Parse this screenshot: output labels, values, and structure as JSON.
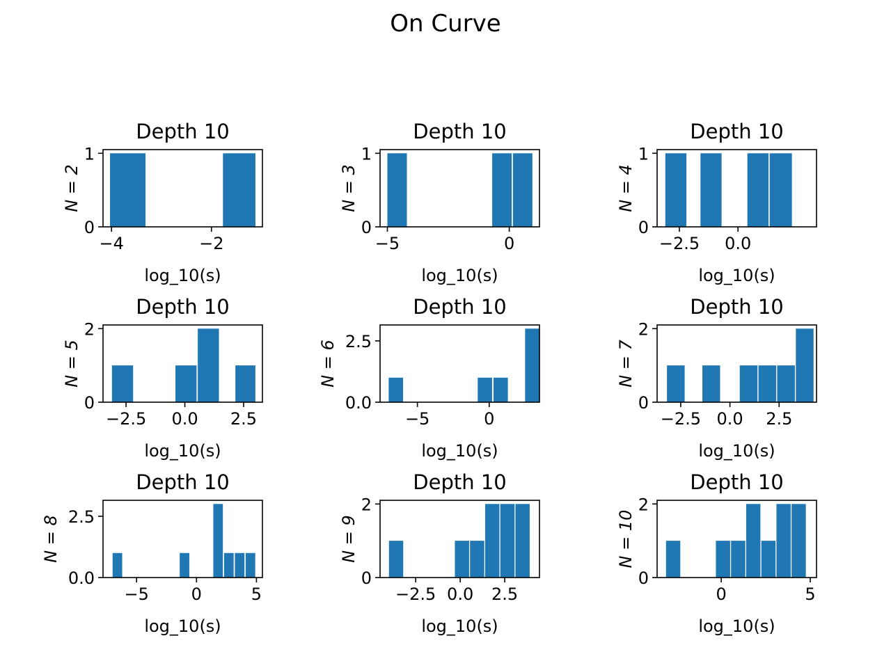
{
  "figure": {
    "suptitle": "On Curve"
  },
  "chart_data": [
    {
      "type": "bar",
      "title": "Depth 10",
      "ylabel": "N = 2",
      "xlabel": "log_10(s)",
      "xlim": [
        -4.17,
        -0.98
      ],
      "ylim": [
        0,
        1.05
      ],
      "xticks": [
        {
          "v": -4,
          "label": "−4"
        },
        {
          "v": -2,
          "label": "−2"
        }
      ],
      "yticks": [
        {
          "v": 0,
          "label": "0"
        },
        {
          "v": 1,
          "label": "1"
        }
      ],
      "bins": [
        {
          "x0": -4.03,
          "x1": -3.32,
          "count": 1
        },
        {
          "x0": -1.77,
          "x1": -1.12,
          "count": 1
        }
      ]
    },
    {
      "type": "bar",
      "title": "Depth 10",
      "ylabel": "N = 3",
      "xlabel": "log_10(s)",
      "xlim": [
        -5.3,
        1.24
      ],
      "ylim": [
        0,
        1.05
      ],
      "xticks": [
        {
          "v": -5,
          "label": "−5"
        },
        {
          "v": 0,
          "label": "0"
        }
      ],
      "yticks": [
        {
          "v": 0,
          "label": "0"
        },
        {
          "v": 1,
          "label": "1"
        }
      ],
      "bins": [
        {
          "x0": -5.0,
          "x1": -4.2,
          "count": 1
        },
        {
          "x0": -0.7,
          "x1": 0.1,
          "count": 1
        },
        {
          "x0": 0.15,
          "x1": 0.95,
          "count": 1
        }
      ]
    },
    {
      "type": "bar",
      "title": "Depth 10",
      "ylabel": "N = 4",
      "xlabel": "log_10(s)",
      "xlim": [
        -3.45,
        3.35
      ],
      "ylim": [
        0,
        1.05
      ],
      "xticks": [
        {
          "v": -2.5,
          "label": "−2.5"
        },
        {
          "v": 0,
          "label": "0.0"
        }
      ],
      "yticks": [
        {
          "v": 0,
          "label": "0"
        },
        {
          "v": 1,
          "label": "1"
        }
      ],
      "bins": [
        {
          "x0": -3.1,
          "x1": -2.2,
          "count": 1
        },
        {
          "x0": -1.6,
          "x1": -0.7,
          "count": 1
        },
        {
          "x0": 0.4,
          "x1": 1.3,
          "count": 1
        },
        {
          "x0": 1.35,
          "x1": 2.3,
          "count": 1
        }
      ]
    },
    {
      "type": "bar",
      "title": "Depth 10",
      "ylabel": "N = 5",
      "xlabel": "log_10(s)",
      "xlim": [
        -3.48,
        3.3
      ],
      "ylim": [
        0,
        2.1
      ],
      "xticks": [
        {
          "v": -2.5,
          "label": "−2.5"
        },
        {
          "v": 0,
          "label": "0.0"
        },
        {
          "v": 2.5,
          "label": "2.5"
        }
      ],
      "yticks": [
        {
          "v": 0,
          "label": "0"
        },
        {
          "v": 2,
          "label": "2"
        }
      ],
      "bins": [
        {
          "x0": -3.1,
          "x1": -2.2,
          "count": 1
        },
        {
          "x0": -0.4,
          "x1": 0.5,
          "count": 1
        },
        {
          "x0": 0.55,
          "x1": 1.45,
          "count": 2
        },
        {
          "x0": 2.15,
          "x1": 3.0,
          "count": 1
        }
      ]
    },
    {
      "type": "bar",
      "title": "Depth 10",
      "ylabel": "N = 6",
      "xlabel": "log_10(s)",
      "xlim": [
        -7.6,
        3.5
      ],
      "ylim": [
        0,
        3.15
      ],
      "xticks": [
        {
          "v": -5,
          "label": "−5"
        },
        {
          "v": 0,
          "label": "0"
        }
      ],
      "yticks": [
        {
          "v": 0,
          "label": "0.0"
        },
        {
          "v": 2.5,
          "label": "2.5"
        }
      ],
      "bins": [
        {
          "x0": -7.0,
          "x1": -6.0,
          "count": 1
        },
        {
          "x0": -0.8,
          "x1": 0.2,
          "count": 1
        },
        {
          "x0": 0.3,
          "x1": 1.3,
          "count": 1
        },
        {
          "x0": 2.5,
          "x1": 3.5,
          "count": 3
        }
      ]
    },
    {
      "type": "bar",
      "title": "Depth 10",
      "ylabel": "N = 7",
      "xlabel": "log_10(s)",
      "xlim": [
        -3.7,
        4.4
      ],
      "ylim": [
        0,
        2.1
      ],
      "xticks": [
        {
          "v": -2.5,
          "label": "−2.5"
        },
        {
          "v": 0,
          "label": "0.0"
        },
        {
          "v": 2.5,
          "label": "2.5"
        }
      ],
      "yticks": [
        {
          "v": 0,
          "label": "0"
        },
        {
          "v": 2,
          "label": "2"
        }
      ],
      "bins": [
        {
          "x0": -3.2,
          "x1": -2.3,
          "count": 1
        },
        {
          "x0": -1.4,
          "x1": -0.5,
          "count": 1
        },
        {
          "x0": 0.5,
          "x1": 1.4,
          "count": 1
        },
        {
          "x0": 1.45,
          "x1": 2.35,
          "count": 1
        },
        {
          "x0": 2.4,
          "x1": 3.3,
          "count": 1
        },
        {
          "x0": 3.35,
          "x1": 4.25,
          "count": 2
        }
      ]
    },
    {
      "type": "bar",
      "title": "Depth 10",
      "ylabel": "N = 8",
      "xlabel": "log_10(s)",
      "xlim": [
        -7.8,
        5.5
      ],
      "ylim": [
        0,
        3.15
      ],
      "xticks": [
        {
          "v": -5,
          "label": "−5"
        },
        {
          "v": 0,
          "label": "0"
        },
        {
          "v": 5,
          "label": "5"
        }
      ],
      "yticks": [
        {
          "v": 0,
          "label": "0.0"
        },
        {
          "v": 2.5,
          "label": "2.5"
        }
      ],
      "bins": [
        {
          "x0": -7.0,
          "x1": -6.2,
          "count": 1
        },
        {
          "x0": -1.4,
          "x1": -0.6,
          "count": 1
        },
        {
          "x0": 1.4,
          "x1": 2.2,
          "count": 3
        },
        {
          "x0": 2.3,
          "x1": 3.1,
          "count": 1
        },
        {
          "x0": 3.2,
          "x1": 4.0,
          "count": 1
        },
        {
          "x0": 4.1,
          "x1": 4.9,
          "count": 1
        }
      ]
    },
    {
      "type": "bar",
      "title": "Depth 10",
      "ylabel": "N = 9",
      "xlabel": "log_10(s)",
      "xlim": [
        -4.5,
        4.45
      ],
      "ylim": [
        0,
        2.1
      ],
      "xticks": [
        {
          "v": -2.5,
          "label": "−2.5"
        },
        {
          "v": 0,
          "label": "0.0"
        },
        {
          "v": 2.5,
          "label": "2.5"
        }
      ],
      "yticks": [
        {
          "v": 0,
          "label": "0"
        },
        {
          "v": 2,
          "label": "2"
        }
      ],
      "bins": [
        {
          "x0": -4.0,
          "x1": -3.2,
          "count": 1
        },
        {
          "x0": -0.3,
          "x1": 0.5,
          "count": 1
        },
        {
          "x0": 0.55,
          "x1": 1.35,
          "count": 1
        },
        {
          "x0": 1.4,
          "x1": 2.2,
          "count": 2
        },
        {
          "x0": 2.25,
          "x1": 3.05,
          "count": 2
        },
        {
          "x0": 3.1,
          "x1": 3.9,
          "count": 2
        }
      ]
    },
    {
      "type": "bar",
      "title": "Depth 10",
      "ylabel": "N = 10",
      "xlabel": "log_10(s)",
      "xlim": [
        -3.6,
        5.35
      ],
      "ylim": [
        0,
        2.1
      ],
      "xticks": [
        {
          "v": 0,
          "label": "0"
        },
        {
          "v": 5,
          "label": "5"
        }
      ],
      "yticks": [
        {
          "v": 0,
          "label": "0"
        },
        {
          "v": 2,
          "label": "2"
        }
      ],
      "bins": [
        {
          "x0": -3.1,
          "x1": -2.3,
          "count": 1
        },
        {
          "x0": -0.3,
          "x1": 0.5,
          "count": 1
        },
        {
          "x0": 0.55,
          "x1": 1.35,
          "count": 1
        },
        {
          "x0": 1.4,
          "x1": 2.2,
          "count": 2
        },
        {
          "x0": 2.25,
          "x1": 3.05,
          "count": 1
        },
        {
          "x0": 3.1,
          "x1": 3.9,
          "count": 2
        },
        {
          "x0": 3.95,
          "x1": 4.75,
          "count": 2
        }
      ]
    }
  ],
  "style": {
    "bar_color": "#1f77b4"
  }
}
